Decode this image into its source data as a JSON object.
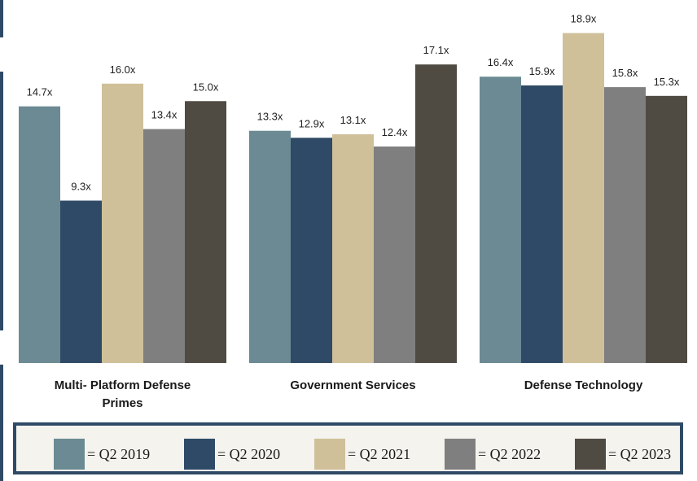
{
  "chart_data": {
    "type": "bar",
    "categories": [
      [
        "Multi- Platform Defense",
        "Primes"
      ],
      [
        "Government Services"
      ],
      [
        "Defense Technology"
      ]
    ],
    "series": [
      {
        "name": "Q2 2019",
        "color": "#6b8a93",
        "values": [
          14.7,
          13.3,
          16.4
        ],
        "labels": [
          "14.7x",
          "13.3x",
          "16.4x"
        ]
      },
      {
        "name": "Q2 2020",
        "color": "#2f4a66",
        "values": [
          9.3,
          12.9,
          15.9
        ],
        "labels": [
          "9.3x",
          "12.9x",
          "15.9x"
        ]
      },
      {
        "name": "Q2 2021",
        "color": "#cfc09a",
        "values": [
          16.0,
          13.1,
          18.9
        ],
        "labels": [
          "16.0x",
          "13.1x",
          "18.9x"
        ]
      },
      {
        "name": "Q2 2022",
        "color": "#7f7f7f",
        "values": [
          13.4,
          12.4,
          15.8
        ],
        "labels": [
          "13.4x",
          "12.4x",
          "15.8x"
        ]
      },
      {
        "name": "Q2 2023",
        "color": "#4f4b43",
        "values": [
          15.0,
          17.1,
          15.3
        ],
        "labels": [
          "15.0x",
          "17.1x",
          "15.3x"
        ]
      }
    ],
    "title": "",
    "xlabel": "",
    "ylabel": "",
    "grid": false,
    "legend_position": "bottom"
  },
  "legend": {
    "items": [
      {
        "label": "= Q2 2019",
        "color": "#6b8a93"
      },
      {
        "label": "= Q2 2020",
        "color": "#2f4a66"
      },
      {
        "label": "= Q2 2021",
        "color": "#cfc09a"
      },
      {
        "label": "= Q2 2022",
        "color": "#7f7f7f"
      },
      {
        "label": "= Q2 2023",
        "color": "#4f4b43"
      }
    ]
  }
}
